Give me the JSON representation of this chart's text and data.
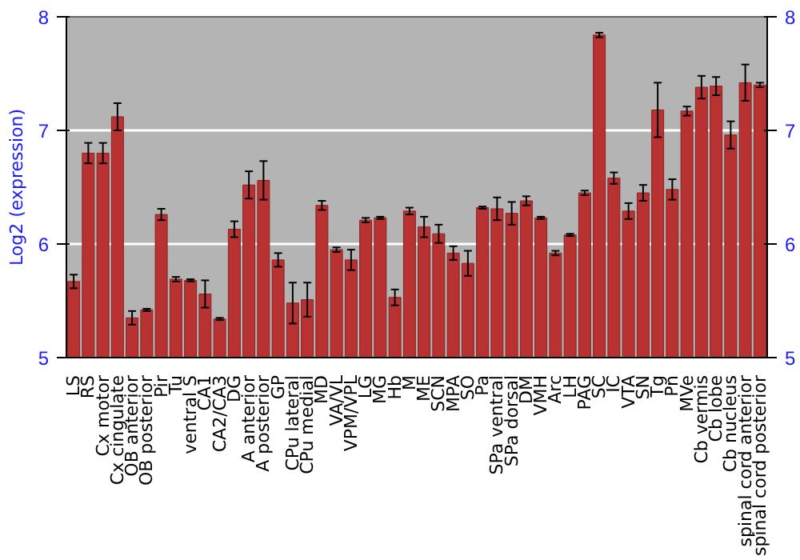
{
  "chart_data": {
    "type": "bar",
    "ylabel": "Log2 (expression)",
    "categories": [
      "LS",
      "RS",
      "Cx motor",
      "Cx cingulate",
      "OB anterior",
      "OB posterior",
      "Pir",
      "Tu",
      "ventral S",
      "CA1",
      "CA2/CA3",
      "DG",
      "A anterior",
      "A posterior",
      "GP",
      "CPu lateral",
      "CPu medial",
      "MD",
      "VA/VL",
      "VPM/VPL",
      "LG",
      "MG",
      "Hb",
      "M",
      "ME",
      "SCN",
      "MPA",
      "SO",
      "Pa",
      "SPa ventral",
      "SPa dorsal",
      "DM",
      "VMH",
      "Arc",
      "LH",
      "PAG",
      "SC",
      "IC",
      "VTA",
      "SN",
      "Tg",
      "Pn",
      "MVe",
      "Cb vermis",
      "Cb lobe",
      "Cb nucleus",
      "spinal cord anterior",
      "spinal cord posterior"
    ],
    "values": [
      5.67,
      6.8,
      6.8,
      7.12,
      5.35,
      5.42,
      6.26,
      5.69,
      5.68,
      5.56,
      5.34,
      6.13,
      6.52,
      6.56,
      5.86,
      5.48,
      5.51,
      6.34,
      5.95,
      5.86,
      6.21,
      6.23,
      5.53,
      6.29,
      6.15,
      6.09,
      5.92,
      5.83,
      6.32,
      6.31,
      6.27,
      6.38,
      6.23,
      5.92,
      6.08,
      6.45,
      7.84,
      6.58,
      6.29,
      6.45,
      7.18,
      6.48,
      7.17,
      7.38,
      7.39,
      6.96,
      7.42,
      7.4
    ],
    "errors": [
      0.06,
      0.09,
      0.09,
      0.12,
      0.06,
      0.01,
      0.05,
      0.02,
      0.01,
      0.12,
      0.01,
      0.07,
      0.12,
      0.17,
      0.06,
      0.18,
      0.15,
      0.04,
      0.02,
      0.09,
      0.02,
      0.01,
      0.07,
      0.03,
      0.09,
      0.08,
      0.06,
      0.11,
      0.01,
      0.1,
      0.1,
      0.04,
      0.01,
      0.02,
      0.01,
      0.02,
      0.02,
      0.05,
      0.07,
      0.07,
      0.24,
      0.09,
      0.04,
      0.1,
      0.08,
      0.12,
      0.16,
      0.02
    ],
    "color": "#b83232",
    "ylim": [
      5,
      8
    ],
    "yticks": [
      5,
      6,
      7,
      8
    ],
    "y2lim": [
      5,
      8
    ],
    "y2ticks": [
      5,
      6,
      7,
      8
    ],
    "grid": "y"
  }
}
